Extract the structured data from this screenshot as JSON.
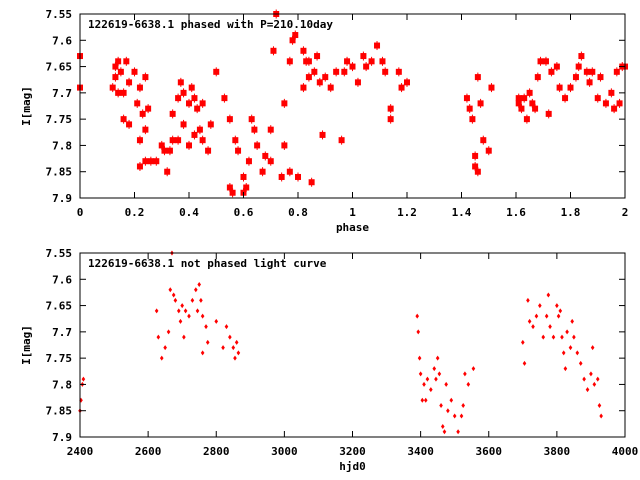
{
  "chart_data": [
    {
      "type": "scatter",
      "title": "122619-6638.1 phased with P=210.10day",
      "xlabel": "phase",
      "ylabel": "I[mag]",
      "xlim": [
        0,
        2
      ],
      "ylim": [
        7.55,
        7.9
      ],
      "y_inverted": true,
      "grid": false,
      "xticks": [
        "0",
        "0.2",
        "0.4",
        "0.6",
        "0.8",
        "1",
        "1.2",
        "1.4",
        "1.6",
        "1.8",
        "2"
      ],
      "yticks": [
        "7.55",
        "7.6",
        "7.65",
        "7.7",
        "7.75",
        "7.8",
        "7.85",
        "7.9"
      ],
      "marker": "filled-square-errorbar",
      "color": "#ff0000",
      "points": [
        [
          0.0,
          7.63
        ],
        [
          0.0,
          7.69
        ],
        [
          0.12,
          7.69
        ],
        [
          0.13,
          7.67
        ],
        [
          0.13,
          7.65
        ],
        [
          0.14,
          7.64
        ],
        [
          0.15,
          7.66
        ],
        [
          0.14,
          7.7
        ],
        [
          0.16,
          7.7
        ],
        [
          0.17,
          7.64
        ],
        [
          0.18,
          7.68
        ],
        [
          0.2,
          7.66
        ],
        [
          0.22,
          7.69
        ],
        [
          0.24,
          7.67
        ],
        [
          0.16,
          7.75
        ],
        [
          0.18,
          7.76
        ],
        [
          0.21,
          7.72
        ],
        [
          0.23,
          7.74
        ],
        [
          0.22,
          7.79
        ],
        [
          0.25,
          7.73
        ],
        [
          0.24,
          7.77
        ],
        [
          0.22,
          7.84
        ],
        [
          0.24,
          7.83
        ],
        [
          0.26,
          7.83
        ],
        [
          0.28,
          7.83
        ],
        [
          0.3,
          7.8
        ],
        [
          0.31,
          7.81
        ],
        [
          0.32,
          7.85
        ],
        [
          0.33,
          7.81
        ],
        [
          0.34,
          7.79
        ],
        [
          0.34,
          7.74
        ],
        [
          0.36,
          7.71
        ],
        [
          0.37,
          7.68
        ],
        [
          0.38,
          7.7
        ],
        [
          0.4,
          7.72
        ],
        [
          0.41,
          7.69
        ],
        [
          0.42,
          7.71
        ],
        [
          0.43,
          7.73
        ],
        [
          0.45,
          7.72
        ],
        [
          0.36,
          7.79
        ],
        [
          0.38,
          7.76
        ],
        [
          0.4,
          7.8
        ],
        [
          0.42,
          7.78
        ],
        [
          0.44,
          7.77
        ],
        [
          0.45,
          7.79
        ],
        [
          0.47,
          7.81
        ],
        [
          0.48,
          7.76
        ],
        [
          0.5,
          7.66
        ],
        [
          0.53,
          7.71
        ],
        [
          0.55,
          7.75
        ],
        [
          0.55,
          7.88
        ],
        [
          0.56,
          7.89
        ],
        [
          0.57,
          7.79
        ],
        [
          0.58,
          7.81
        ],
        [
          0.6,
          7.86
        ],
        [
          0.6,
          7.89
        ],
        [
          0.61,
          7.88
        ],
        [
          0.62,
          7.83
        ],
        [
          0.63,
          7.75
        ],
        [
          0.64,
          7.77
        ],
        [
          0.65,
          7.8
        ],
        [
          0.67,
          7.85
        ],
        [
          0.68,
          7.82
        ],
        [
          0.7,
          7.77
        ],
        [
          0.7,
          7.83
        ],
        [
          0.71,
          7.62
        ],
        [
          0.72,
          7.55
        ],
        [
          0.74,
          7.86
        ],
        [
          0.75,
          7.8
        ],
        [
          0.75,
          7.72
        ],
        [
          0.77,
          7.85
        ],
        [
          0.77,
          7.64
        ],
        [
          0.78,
          7.6
        ],
        [
          0.79,
          7.59
        ],
        [
          0.8,
          7.86
        ],
        [
          0.82,
          7.62
        ],
        [
          0.83,
          7.64
        ],
        [
          0.84,
          7.64
        ],
        [
          0.85,
          7.87
        ],
        [
          0.87,
          7.63
        ],
        [
          0.82,
          7.69
        ],
        [
          0.84,
          7.67
        ],
        [
          0.86,
          7.66
        ],
        [
          0.88,
          7.68
        ],
        [
          0.89,
          7.78
        ],
        [
          0.9,
          7.67
        ],
        [
          0.92,
          7.69
        ],
        [
          0.94,
          7.66
        ],
        [
          0.96,
          7.79
        ],
        [
          0.97,
          7.66
        ],
        [
          0.98,
          7.64
        ],
        [
          1.0,
          7.65
        ],
        [
          1.02,
          7.68
        ],
        [
          1.04,
          7.63
        ],
        [
          1.05,
          7.65
        ],
        [
          1.07,
          7.64
        ],
        [
          1.09,
          7.61
        ],
        [
          1.11,
          7.64
        ],
        [
          1.12,
          7.66
        ],
        [
          1.14,
          7.73
        ],
        [
          1.14,
          7.75
        ],
        [
          1.17,
          7.66
        ],
        [
          1.18,
          7.69
        ],
        [
          1.2,
          7.68
        ],
        [
          1.42,
          7.71
        ],
        [
          1.43,
          7.73
        ],
        [
          1.44,
          7.75
        ],
        [
          1.45,
          7.82
        ],
        [
          1.45,
          7.84
        ],
        [
          1.46,
          7.85
        ],
        [
          1.46,
          7.67
        ],
        [
          1.47,
          7.72
        ],
        [
          1.48,
          7.79
        ],
        [
          1.5,
          7.81
        ],
        [
          1.51,
          7.69
        ],
        [
          1.61,
          7.71
        ],
        [
          1.61,
          7.72
        ],
        [
          1.62,
          7.73
        ],
        [
          1.63,
          7.71
        ],
        [
          1.64,
          7.75
        ],
        [
          1.65,
          7.7
        ],
        [
          1.66,
          7.72
        ],
        [
          1.67,
          7.73
        ],
        [
          1.68,
          7.67
        ],
        [
          1.69,
          7.64
        ],
        [
          1.71,
          7.64
        ],
        [
          1.72,
          7.74
        ],
        [
          1.73,
          7.66
        ],
        [
          1.75,
          7.65
        ],
        [
          1.76,
          7.69
        ],
        [
          1.78,
          7.71
        ],
        [
          1.8,
          7.69
        ],
        [
          1.82,
          7.67
        ],
        [
          1.83,
          7.65
        ],
        [
          1.84,
          7.63
        ],
        [
          1.86,
          7.66
        ],
        [
          1.87,
          7.68
        ],
        [
          1.88,
          7.66
        ],
        [
          1.9,
          7.71
        ],
        [
          1.91,
          7.67
        ],
        [
          1.93,
          7.72
        ],
        [
          1.95,
          7.7
        ],
        [
          1.96,
          7.73
        ],
        [
          1.98,
          7.72
        ],
        [
          1.97,
          7.66
        ],
        [
          1.99,
          7.65
        ],
        [
          2.0,
          7.65
        ]
      ]
    },
    {
      "type": "scatter",
      "title": "122619-6638.1 not phased light curve",
      "xlabel": "hjd0",
      "ylabel": "I[mag]",
      "xlim": [
        2400,
        4000
      ],
      "ylim": [
        7.55,
        7.9
      ],
      "y_inverted": true,
      "grid": false,
      "xticks": [
        "2400",
        "2600",
        "2800",
        "3000",
        "3200",
        "3400",
        "3600",
        "3800",
        "4000"
      ],
      "yticks": [
        "7.55",
        "7.6",
        "7.65",
        "7.7",
        "7.75",
        "7.8",
        "7.85",
        "7.9"
      ],
      "marker": "small-diamond",
      "color": "#ff0000",
      "points": [
        [
          2400,
          7.85
        ],
        [
          2403,
          7.83
        ],
        [
          2407,
          7.8
        ],
        [
          2410,
          7.79
        ],
        [
          2625,
          7.66
        ],
        [
          2630,
          7.71
        ],
        [
          2640,
          7.75
        ],
        [
          2650,
          7.73
        ],
        [
          2660,
          7.7
        ],
        [
          2665,
          7.62
        ],
        [
          2670,
          7.55
        ],
        [
          2675,
          7.63
        ],
        [
          2680,
          7.64
        ],
        [
          2690,
          7.66
        ],
        [
          2695,
          7.68
        ],
        [
          2700,
          7.65
        ],
        [
          2705,
          7.71
        ],
        [
          2710,
          7.66
        ],
        [
          2720,
          7.67
        ],
        [
          2730,
          7.64
        ],
        [
          2740,
          7.62
        ],
        [
          2745,
          7.66
        ],
        [
          2750,
          7.61
        ],
        [
          2755,
          7.64
        ],
        [
          2760,
          7.67
        ],
        [
          2770,
          7.69
        ],
        [
          2775,
          7.72
        ],
        [
          2760,
          7.74
        ],
        [
          2800,
          7.68
        ],
        [
          2820,
          7.73
        ],
        [
          2830,
          7.69
        ],
        [
          2840,
          7.71
        ],
        [
          2850,
          7.73
        ],
        [
          2860,
          7.72
        ],
        [
          2865,
          7.74
        ],
        [
          2855,
          7.75
        ],
        [
          3390,
          7.67
        ],
        [
          3393,
          7.7
        ],
        [
          3397,
          7.75
        ],
        [
          3400,
          7.78
        ],
        [
          3405,
          7.83
        ],
        [
          3410,
          7.8
        ],
        [
          3415,
          7.83
        ],
        [
          3420,
          7.79
        ],
        [
          3430,
          7.81
        ],
        [
          3440,
          7.77
        ],
        [
          3445,
          7.79
        ],
        [
          3450,
          7.75
        ],
        [
          3455,
          7.78
        ],
        [
          3460,
          7.84
        ],
        [
          3465,
          7.88
        ],
        [
          3470,
          7.89
        ],
        [
          3475,
          7.8
        ],
        [
          3480,
          7.85
        ],
        [
          3490,
          7.83
        ],
        [
          3500,
          7.86
        ],
        [
          3510,
          7.89
        ],
        [
          3520,
          7.86
        ],
        [
          3525,
          7.84
        ],
        [
          3530,
          7.78
        ],
        [
          3540,
          7.8
        ],
        [
          3555,
          7.77
        ],
        [
          3700,
          7.72
        ],
        [
          3705,
          7.76
        ],
        [
          3715,
          7.64
        ],
        [
          3720,
          7.68
        ],
        [
          3730,
          7.69
        ],
        [
          3740,
          7.67
        ],
        [
          3750,
          7.65
        ],
        [
          3760,
          7.71
        ],
        [
          3770,
          7.67
        ],
        [
          3775,
          7.63
        ],
        [
          3780,
          7.69
        ],
        [
          3790,
          7.71
        ],
        [
          3800,
          7.65
        ],
        [
          3805,
          7.67
        ],
        [
          3810,
          7.66
        ],
        [
          3815,
          7.71
        ],
        [
          3820,
          7.74
        ],
        [
          3825,
          7.77
        ],
        [
          3830,
          7.7
        ],
        [
          3840,
          7.73
        ],
        [
          3845,
          7.68
        ],
        [
          3850,
          7.71
        ],
        [
          3860,
          7.74
        ],
        [
          3870,
          7.76
        ],
        [
          3880,
          7.79
        ],
        [
          3890,
          7.81
        ],
        [
          3900,
          7.78
        ],
        [
          3905,
          7.73
        ],
        [
          3910,
          7.8
        ],
        [
          3920,
          7.79
        ],
        [
          3925,
          7.84
        ],
        [
          3930,
          7.86
        ]
      ]
    }
  ]
}
